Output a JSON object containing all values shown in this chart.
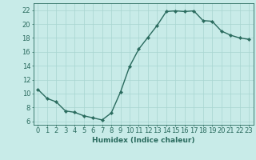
{
  "x": [
    0,
    1,
    2,
    3,
    4,
    5,
    6,
    7,
    8,
    9,
    10,
    11,
    12,
    13,
    14,
    15,
    16,
    17,
    18,
    19,
    20,
    21,
    22,
    23
  ],
  "y": [
    10.6,
    9.3,
    8.8,
    7.5,
    7.3,
    6.8,
    6.5,
    6.2,
    7.2,
    10.2,
    13.9,
    16.4,
    18.1,
    19.8,
    21.8,
    21.9,
    21.8,
    21.9,
    20.5,
    20.4,
    19.0,
    18.4,
    18.0,
    17.8
  ],
  "line_color": "#2a6b5e",
  "marker": "D",
  "marker_size": 2.2,
  "bg_color": "#c8ebe8",
  "grid_color": "#a8d5d0",
  "xlabel": "Humidex (Indice chaleur)",
  "xlim": [
    -0.5,
    23.5
  ],
  "ylim": [
    5.5,
    23.0
  ],
  "yticks": [
    6,
    8,
    10,
    12,
    14,
    16,
    18,
    20,
    22
  ],
  "xticks": [
    0,
    1,
    2,
    3,
    4,
    5,
    6,
    7,
    8,
    9,
    10,
    11,
    12,
    13,
    14,
    15,
    16,
    17,
    18,
    19,
    20,
    21,
    22,
    23
  ],
  "xtick_labels": [
    "0",
    "1",
    "2",
    "3",
    "4",
    "5",
    "6",
    "7",
    "8",
    "9",
    "10",
    "11",
    "12",
    "13",
    "14",
    "15",
    "16",
    "17",
    "18",
    "19",
    "20",
    "21",
    "22",
    "23"
  ],
  "font_color": "#2a6b5e",
  "label_fontsize": 6.5,
  "tick_fontsize": 6.0,
  "linewidth": 1.0
}
